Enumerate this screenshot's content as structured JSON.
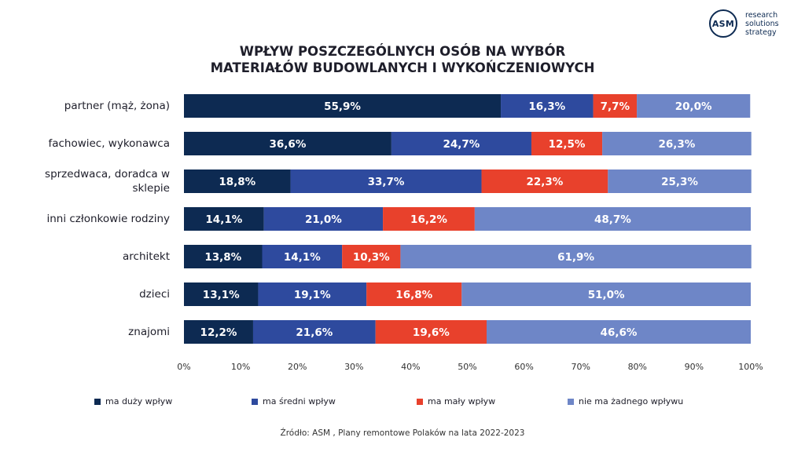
{
  "logo": {
    "mark": "ASM",
    "tagline": [
      "research",
      "solutions",
      "strategy"
    ],
    "color": "#0d2a52"
  },
  "title": {
    "line1": "WPŁYW POSZCZEGÓLNYCH OSÓB NA WYBÓR",
    "line2": "MATERIAŁÓW BUDOWLANYCH I WYKOŃCZENIOWYCH"
  },
  "source": "Źródło: ASM , Plany remontowe Polaków na lata 2022-2023",
  "chart_data": {
    "type": "bar",
    "orientation": "horizontal",
    "stacked": true,
    "categories": [
      [
        "partner (mąż, żona)"
      ],
      [
        "fachowiec, wykonawca"
      ],
      [
        "sprzedwaca, doradca w",
        "sklepie"
      ],
      [
        "inni członkowie rodziny"
      ],
      [
        "architekt"
      ],
      [
        "dzieci"
      ],
      [
        "znajomi"
      ]
    ],
    "series": [
      {
        "name": "ma duży wpływ",
        "color": "#0d2a52",
        "values": [
          55.9,
          36.6,
          18.8,
          14.1,
          13.8,
          13.1,
          12.2
        ],
        "labels": [
          "55,9%",
          "36,6%",
          "18,8%",
          "14,1%",
          "13,8%",
          "13,1%",
          "12,2%"
        ]
      },
      {
        "name": "ma średni wpływ",
        "color": "#2e4a9e",
        "values": [
          16.3,
          24.7,
          33.7,
          21.0,
          14.1,
          19.1,
          21.6
        ],
        "labels": [
          "16,3%",
          "24,7%",
          "33,7%",
          "21,0%",
          "14,1%",
          "19,1%",
          "21,6%"
        ]
      },
      {
        "name": "ma mały wpływ",
        "color": "#e8412c",
        "values": [
          7.7,
          12.5,
          22.3,
          16.2,
          10.3,
          16.8,
          19.6
        ],
        "labels": [
          "7,7%",
          "12,5%",
          "22,3%",
          "16,2%",
          "10,3%",
          "16,8%",
          "19,6%"
        ]
      },
      {
        "name": "nie ma żadnego wpływu",
        "color": "#6e86c7",
        "values": [
          20.0,
          26.3,
          25.3,
          48.7,
          61.9,
          51.0,
          46.6
        ],
        "labels": [
          "20,0%",
          "26,3%",
          "25,3%",
          "48,7%",
          "61,9%",
          "51,0%",
          "46,6%"
        ]
      }
    ],
    "xlim": [
      0,
      100
    ],
    "xticks": [
      0,
      10,
      20,
      30,
      40,
      50,
      60,
      70,
      80,
      90,
      100
    ],
    "xtick_labels": [
      "0%",
      "10%",
      "20%",
      "30%",
      "40%",
      "50%",
      "60%",
      "70%",
      "80%",
      "90%",
      "100%"
    ],
    "grid": false,
    "legend_position": "bottom"
  }
}
